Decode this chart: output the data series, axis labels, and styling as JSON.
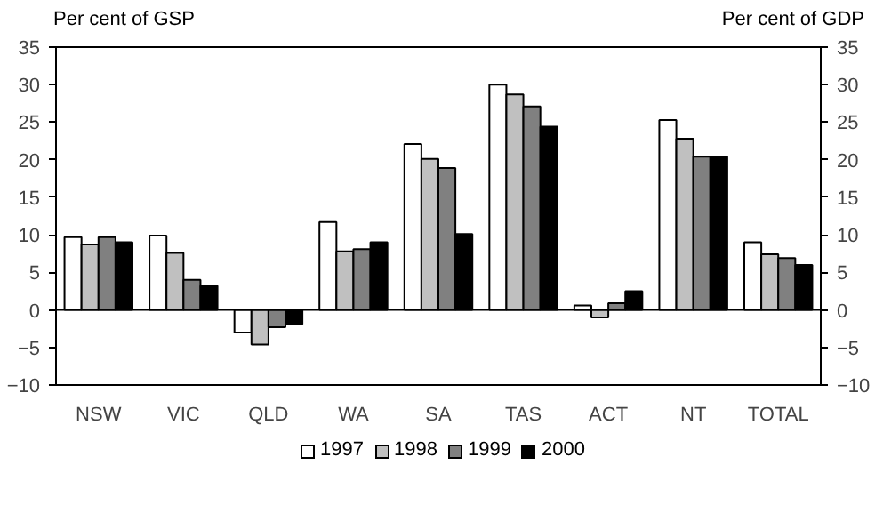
{
  "chart_data": {
    "type": "bar",
    "ylabel": "Per cent of GSP",
    "y2label": "Per cent of GDP",
    "categories": [
      "NSW",
      "VIC",
      "QLD",
      "WA",
      "SA",
      "TAS",
      "ACT",
      "NT",
      "TOTAL"
    ],
    "series": [
      {
        "name": "1997",
        "color": "#ffffff",
        "values": [
          9.7,
          9.9,
          -3.0,
          11.7,
          22.1,
          30.0,
          0.6,
          25.3,
          9.0
        ]
      },
      {
        "name": "1998",
        "color": "#c0c0c0",
        "values": [
          8.7,
          7.6,
          -4.6,
          7.8,
          20.1,
          28.7,
          -1.0,
          22.8,
          7.4
        ]
      },
      {
        "name": "1999",
        "color": "#808080",
        "values": [
          9.7,
          4.0,
          -2.3,
          8.1,
          18.9,
          27.1,
          0.9,
          20.4,
          6.9
        ]
      },
      {
        "name": "2000",
        "color": "#000000",
        "values": [
          9.0,
          3.2,
          -1.9,
          9.0,
          10.1,
          24.4,
          2.5,
          20.4,
          6.0
        ]
      }
    ],
    "ylim": [
      -10,
      35
    ],
    "yticks": [
      -10,
      -5,
      0,
      5,
      10,
      15,
      20,
      25,
      30,
      35
    ],
    "y2lim": [
      -10,
      35
    ],
    "y2ticks": [
      -10,
      -5,
      0,
      5,
      10,
      15,
      20,
      25,
      30,
      35
    ],
    "legend": "bottom"
  }
}
